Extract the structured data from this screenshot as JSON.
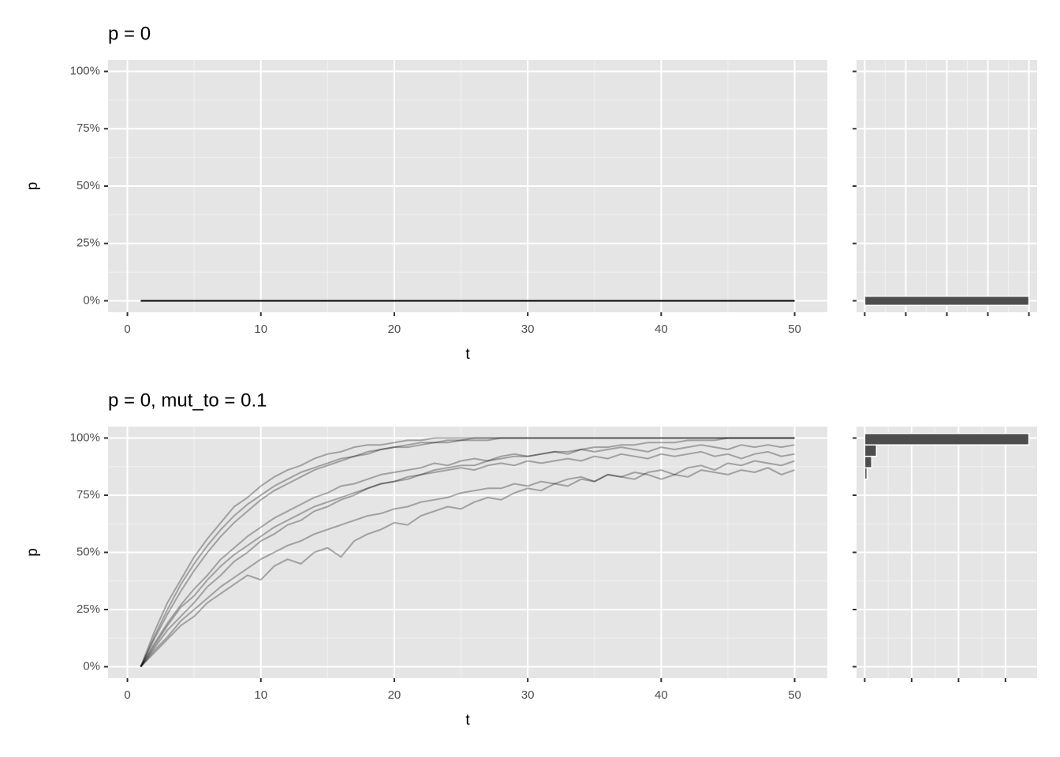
{
  "chart_data": [
    {
      "type": "line",
      "title": "p = 0",
      "xlabel": "t",
      "ylabel": "p",
      "x": [
        1,
        2,
        3,
        4,
        5,
        6,
        7,
        8,
        9,
        10,
        11,
        12,
        13,
        14,
        15,
        16,
        17,
        18,
        19,
        20,
        21,
        22,
        23,
        24,
        25,
        26,
        27,
        28,
        29,
        30,
        31,
        32,
        33,
        34,
        35,
        36,
        37,
        38,
        39,
        40,
        41,
        42,
        43,
        44,
        45,
        46,
        47,
        48,
        49,
        50
      ],
      "xlim": [
        -1.45,
        52.45
      ],
      "xticks": [
        0,
        10,
        20,
        30,
        40,
        50
      ],
      "ylim": [
        -5,
        105
      ],
      "yticks": [
        {
          "value": 0,
          "label": "0%"
        },
        {
          "value": 25,
          "label": "25%"
        },
        {
          "value": 50,
          "label": "50%"
        },
        {
          "value": 75,
          "label": "75%"
        },
        {
          "value": 100,
          "label": "100%"
        }
      ],
      "grid": true,
      "series": [
        {
          "color": "#000000",
          "opacity": 1,
          "values": [
            0,
            0,
            0,
            0,
            0,
            0,
            0,
            0,
            0,
            0,
            0,
            0,
            0,
            0,
            0,
            0,
            0,
            0,
            0,
            0,
            0,
            0,
            0,
            0,
            0,
            0,
            0,
            0,
            0,
            0,
            0,
            0,
            0,
            0,
            0,
            0,
            0,
            0,
            0,
            0,
            0,
            0,
            0,
            0,
            0,
            0,
            0,
            0,
            0,
            0
          ]
        }
      ]
    },
    {
      "type": "histogram",
      "orientation": "horizontal",
      "bins": [
        -2,
        2
      ],
      "counts": [
        100
      ],
      "color": "#4d4d4d",
      "xlim": [
        -5,
        105
      ],
      "xticks": [
        0,
        25,
        50,
        75,
        100
      ],
      "ylim": [
        -5,
        105
      ],
      "yticks": [
        0,
        25,
        50,
        75,
        100
      ],
      "grid": true
    },
    {
      "type": "line",
      "title": "p = 0, mut_to = 0.1",
      "xlabel": "t",
      "ylabel": "p",
      "x": [
        1,
        2,
        3,
        4,
        5,
        6,
        7,
        8,
        9,
        10,
        11,
        12,
        13,
        14,
        15,
        16,
        17,
        18,
        19,
        20,
        21,
        22,
        23,
        24,
        25,
        26,
        27,
        28,
        29,
        30,
        31,
        32,
        33,
        34,
        35,
        36,
        37,
        38,
        39,
        40,
        41,
        42,
        43,
        44,
        45,
        46,
        47,
        48,
        49,
        50
      ],
      "xlim": [
        -1.45,
        52.45
      ],
      "xticks": [
        0,
        10,
        20,
        30,
        40,
        50
      ],
      "ylim": [
        -5,
        105
      ],
      "yticks": [
        {
          "value": 0,
          "label": "0%"
        },
        {
          "value": 25,
          "label": "25%"
        },
        {
          "value": 50,
          "label": "50%"
        },
        {
          "value": 75,
          "label": "75%"
        },
        {
          "value": 100,
          "label": "100%"
        }
      ],
      "grid": true,
      "series": [
        {
          "color": "#000000",
          "opacity": 0.3,
          "values": [
            0,
            12,
            23,
            33,
            42,
            50,
            57,
            63,
            68,
            73,
            77,
            80,
            83,
            86,
            88,
            90,
            92,
            93,
            95,
            96,
            97,
            98,
            98,
            99,
            99,
            100,
            100,
            100,
            100,
            100,
            100,
            100,
            100,
            100,
            100,
            100,
            100,
            100,
            100,
            100,
            100,
            100,
            100,
            100,
            100,
            100,
            100,
            100,
            100,
            100
          ]
        },
        {
          "color": "#000000",
          "opacity": 0.3,
          "values": [
            0,
            8,
            16,
            22,
            28,
            35,
            40,
            46,
            50,
            55,
            58,
            62,
            64,
            68,
            70,
            73,
            75,
            78,
            80,
            81,
            83,
            84,
            86,
            87,
            88,
            88,
            90,
            91,
            92,
            92,
            93,
            94,
            94,
            95,
            96,
            96,
            97,
            97,
            98,
            98,
            98,
            99,
            99,
            99,
            100,
            100,
            100,
            100,
            100,
            100
          ]
        },
        {
          "color": "#000000",
          "opacity": 0.3,
          "values": [
            0,
            6,
            12,
            18,
            22,
            28,
            32,
            36,
            40,
            38,
            44,
            47,
            45,
            50,
            52,
            48,
            55,
            58,
            60,
            63,
            62,
            66,
            68,
            70,
            69,
            72,
            74,
            73,
            76,
            78,
            77,
            80,
            79,
            82,
            81,
            84,
            83,
            82,
            85,
            86,
            84,
            87,
            88,
            86,
            89,
            88,
            90,
            89,
            88,
            90
          ]
        },
        {
          "color": "#000000",
          "opacity": 0.3,
          "values": [
            0,
            15,
            28,
            38,
            48,
            56,
            63,
            70,
            74,
            79,
            83,
            86,
            88,
            91,
            93,
            94,
            96,
            97,
            97,
            98,
            99,
            99,
            100,
            100,
            100,
            100,
            100,
            100,
            100,
            100,
            100,
            100,
            100,
            100,
            100,
            100,
            100,
            100,
            100,
            100,
            100,
            100,
            100,
            100,
            100,
            100,
            100,
            100,
            100,
            100
          ]
        },
        {
          "color": "#000000",
          "opacity": 0.3,
          "values": [
            0,
            10,
            19,
            27,
            34,
            40,
            47,
            52,
            57,
            61,
            65,
            68,
            71,
            74,
            76,
            79,
            80,
            82,
            84,
            85,
            86,
            87,
            89,
            88,
            90,
            91,
            90,
            92,
            93,
            92,
            93,
            94,
            93,
            95,
            94,
            95,
            96,
            95,
            94,
            96,
            95,
            96,
            97,
            96,
            95,
            97,
            96,
            97,
            96,
            97
          ]
        },
        {
          "color": "#000000",
          "opacity": 0.3,
          "values": [
            0,
            7,
            13,
            20,
            25,
            30,
            35,
            39,
            43,
            47,
            50,
            53,
            55,
            58,
            60,
            62,
            64,
            66,
            67,
            69,
            70,
            72,
            73,
            74,
            76,
            77,
            78,
            78,
            80,
            79,
            81,
            80,
            82,
            83,
            81,
            84,
            83,
            85,
            84,
            82,
            84,
            83,
            86,
            85,
            84,
            86,
            85,
            87,
            84,
            86
          ]
        },
        {
          "color": "#000000",
          "opacity": 0.3,
          "values": [
            0,
            13,
            25,
            36,
            45,
            53,
            60,
            66,
            71,
            75,
            79,
            82,
            85,
            87,
            89,
            91,
            92,
            94,
            95,
            96,
            96,
            97,
            98,
            98,
            99,
            99,
            99,
            100,
            100,
            100,
            100,
            100,
            100,
            100,
            100,
            100,
            100,
            100,
            100,
            100,
            100,
            100,
            100,
            100,
            100,
            100,
            100,
            100,
            100,
            100
          ]
        },
        {
          "color": "#000000",
          "opacity": 0.3,
          "values": [
            0,
            9,
            18,
            26,
            31,
            38,
            44,
            49,
            53,
            57,
            61,
            64,
            67,
            70,
            72,
            74,
            76,
            78,
            80,
            81,
            82,
            84,
            85,
            86,
            87,
            86,
            88,
            89,
            88,
            90,
            89,
            90,
            91,
            90,
            92,
            91,
            93,
            92,
            91,
            93,
            92,
            93,
            94,
            92,
            93,
            91,
            93,
            94,
            92,
            93
          ]
        }
      ]
    },
    {
      "type": "histogram",
      "orientation": "horizontal",
      "bins": [
        82,
        87,
        92,
        97,
        102
      ],
      "counts": [
        1,
        3,
        5,
        70
      ],
      "color": "#4d4d4d",
      "xlim": [
        -3.5,
        73.5
      ],
      "xticks": [
        0,
        20,
        40,
        60
      ],
      "ylim": [
        -5,
        105
      ],
      "yticks": [
        0,
        25,
        50,
        75,
        100
      ],
      "grid": true
    }
  ]
}
